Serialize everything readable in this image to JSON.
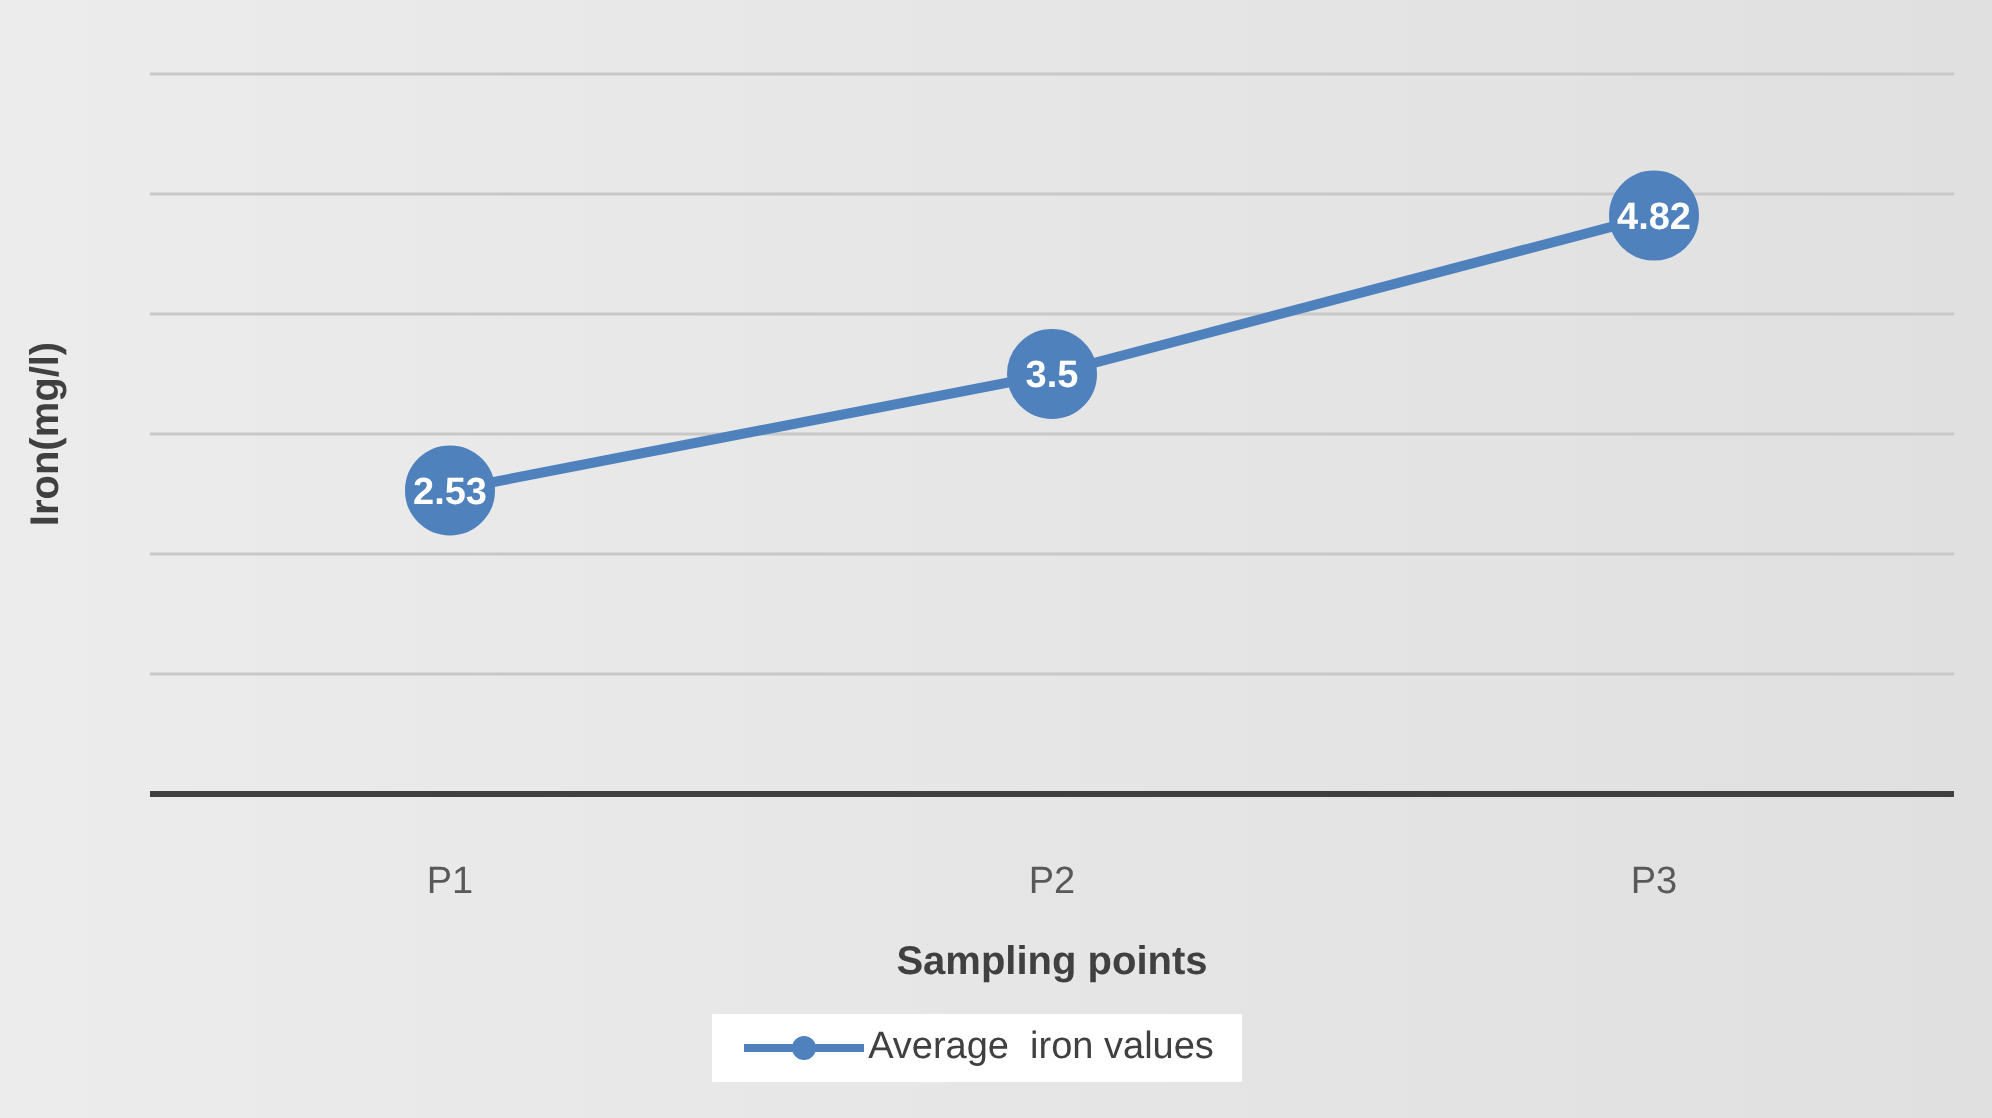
{
  "chart_data": {
    "type": "line",
    "xlabel": "Sampling points",
    "ylabel": "Iron(mg/l)",
    "categories": [
      "P1",
      "P2",
      "P3"
    ],
    "series": [
      {
        "name": "Average  iron values",
        "color": "#4f81bd",
        "values": [
          2.53,
          3.5,
          4.82
        ]
      }
    ],
    "ylim": [
      0,
      6
    ],
    "yticks": [
      {
        "value": 0,
        "label": null
      },
      {
        "value": 1,
        "label": null
      },
      {
        "value": 2,
        "label": null
      },
      {
        "value": 3,
        "label": null
      },
      {
        "value": 4,
        "label": null
      },
      {
        "value": 5,
        "label": null
      },
      {
        "value": 6,
        "label": null
      }
    ],
    "tick_labels": "x",
    "grid": "y",
    "legend": "bottom",
    "marker": "circle",
    "line_style": "solid",
    "data_labels": true
  }
}
